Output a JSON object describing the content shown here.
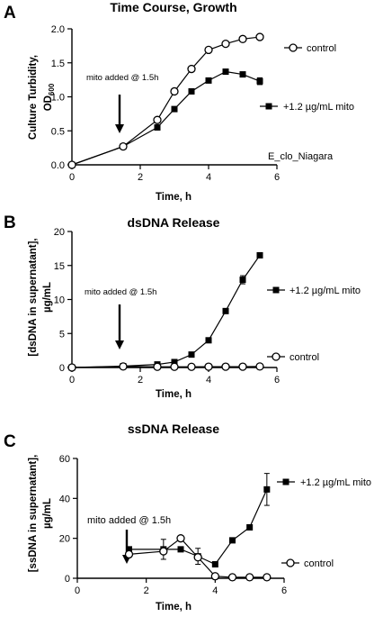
{
  "chart_data": [
    {
      "type": "line",
      "panel_label": "A",
      "title": "Time Course, Growth",
      "ylabel_line1": "Culture Turbidity,",
      "ylabel_line2": "OD",
      "ylabel_subscript": "600",
      "xlabel": "Time, h",
      "xlim": [
        0,
        6
      ],
      "ylim": [
        0,
        2.0
      ],
      "xticks": [
        0,
        2,
        4,
        6
      ],
      "yticks": [
        0.0,
        0.5,
        1.0,
        1.5,
        2.0
      ],
      "ytick_labels": [
        "0.0",
        "0.5",
        "1.0",
        "1.5",
        "2.0"
      ],
      "annotation": "mito added @ 1.5h",
      "strain_label": "E_clo_Niagara",
      "series": [
        {
          "name": "control",
          "marker": "open-circle",
          "x": [
            0,
            1.5,
            2.5,
            3,
            3.5,
            4,
            4.5,
            5,
            5.5
          ],
          "y": [
            0.0,
            0.27,
            0.66,
            1.08,
            1.41,
            1.69,
            1.78,
            1.85,
            1.88
          ],
          "err": [
            0,
            0,
            0,
            0,
            0,
            0,
            0,
            0,
            0
          ]
        },
        {
          "name": "+1.2 µg/mL mito",
          "marker": "filled-square",
          "x": [
            0,
            1.5,
            2.5,
            3,
            3.5,
            4,
            4.5,
            5,
            5.5
          ],
          "y": [
            0.0,
            0.27,
            0.55,
            0.82,
            1.08,
            1.24,
            1.37,
            1.33,
            1.23
          ],
          "err": [
            0,
            0,
            0,
            0,
            0,
            0,
            0,
            0,
            0.05
          ]
        }
      ]
    },
    {
      "type": "line",
      "panel_label": "B",
      "title": "dsDNA Release",
      "ylabel_line1": "[dsDNA in supernatant],",
      "ylabel_line2": "µg/mL",
      "xlabel": "Time, h",
      "xlim": [
        0,
        6
      ],
      "ylim": [
        0,
        20
      ],
      "xticks": [
        0,
        2,
        4,
        6
      ],
      "yticks": [
        0,
        5,
        10,
        15,
        20
      ],
      "ytick_labels": [
        "0",
        "5",
        "10",
        "15",
        "20"
      ],
      "annotation": "mito added @ 1.5h",
      "series": [
        {
          "name": "+1.2 µg/mL mito",
          "marker": "filled-square",
          "x": [
            0,
            1.5,
            2.5,
            3,
            3.5,
            4,
            4.5,
            5,
            5.5
          ],
          "y": [
            0.0,
            0.2,
            0.45,
            0.8,
            1.9,
            4.0,
            8.3,
            12.9,
            16.5
          ],
          "err": [
            0,
            0,
            0,
            0,
            0,
            0,
            0,
            0.6,
            0
          ]
        },
        {
          "name": "control",
          "marker": "open-circle",
          "x": [
            0,
            1.5,
            2.5,
            3,
            3.5,
            4,
            4.5,
            5,
            5.5
          ],
          "y": [
            0.0,
            0.15,
            0.1,
            0.1,
            0.1,
            0.12,
            0.12,
            0.12,
            0.15
          ],
          "err": [
            0,
            0,
            0,
            0,
            0,
            0,
            0,
            0,
            0
          ]
        }
      ]
    },
    {
      "type": "line",
      "panel_label": "C",
      "title": "ssDNA Release",
      "ylabel_line1": "[ssDNA in supernatant],",
      "ylabel_line2": "µg/mL",
      "xlabel": "Time, h",
      "xlim": [
        0,
        6
      ],
      "ylim": [
        0,
        60
      ],
      "xticks": [
        0,
        2,
        4,
        6
      ],
      "yticks": [
        0,
        20,
        40,
        60
      ],
      "ytick_labels": [
        "0",
        "20",
        "40",
        "60"
      ],
      "annotation": "mito added @ 1.5h",
      "series": [
        {
          "name": "+1.2 µg/mL mito",
          "marker": "filled-square",
          "x": [
            1.5,
            2.5,
            3,
            3.5,
            4,
            4.5,
            5,
            5.5
          ],
          "y": [
            14.5,
            14.5,
            14.5,
            11.0,
            7.0,
            19.0,
            25.5,
            44.5
          ],
          "err": [
            0,
            5,
            0,
            4,
            0,
            0,
            0,
            8
          ]
        },
        {
          "name": "control",
          "marker": "open-circle",
          "x": [
            1.5,
            2.5,
            3,
            3.5,
            4,
            4.5,
            5,
            5.5
          ],
          "y": [
            12.0,
            13.5,
            20.0,
            10.5,
            1.0,
            0.5,
            0.5,
            0.5
          ],
          "err": [
            0,
            0,
            0,
            0,
            0,
            0,
            0,
            0
          ]
        }
      ]
    }
  ]
}
